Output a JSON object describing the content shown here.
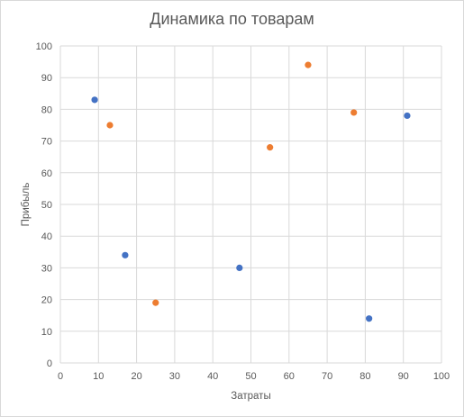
{
  "chart_data": {
    "type": "scatter",
    "title": "Динамика по товарам",
    "xlabel": "Затраты",
    "ylabel": "Прибыль",
    "xlim": [
      0,
      100
    ],
    "ylim": [
      0,
      100
    ],
    "x_ticks": [
      0,
      10,
      20,
      30,
      40,
      50,
      60,
      70,
      80,
      90,
      100
    ],
    "y_ticks": [
      0,
      10,
      20,
      30,
      40,
      50,
      60,
      70,
      80,
      90,
      100
    ],
    "grid": true,
    "legend": "none",
    "series": [
      {
        "color": "#4472c4",
        "points": [
          {
            "x": 9,
            "y": 83
          },
          {
            "x": 17,
            "y": 34
          },
          {
            "x": 47,
            "y": 30
          },
          {
            "x": 81,
            "y": 14
          },
          {
            "x": 91,
            "y": 78
          }
        ]
      },
      {
        "color": "#ed7d31",
        "points": [
          {
            "x": 13,
            "y": 75
          },
          {
            "x": 25,
            "y": 19
          },
          {
            "x": 55,
            "y": 68
          },
          {
            "x": 65,
            "y": 94
          },
          {
            "x": 77,
            "y": 79
          }
        ]
      }
    ]
  }
}
